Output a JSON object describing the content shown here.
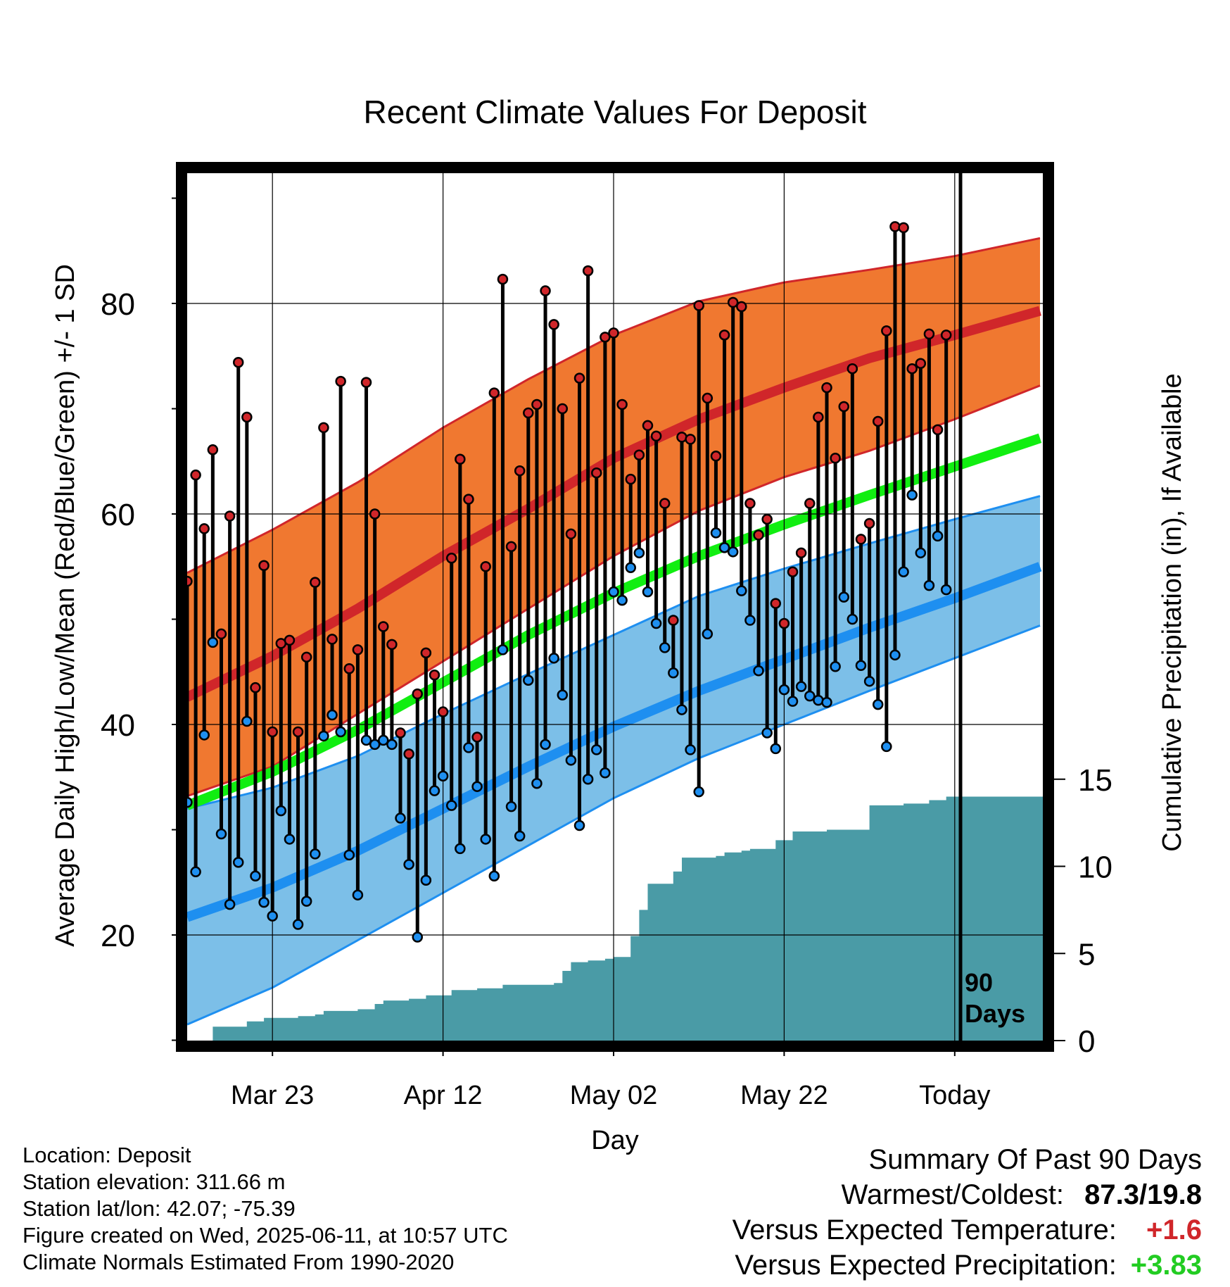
{
  "chart_data": {
    "type": "line",
    "title": "Recent Climate Values For Deposit",
    "xlabel": "Day",
    "ylabel": "Average Daily High/Low/Mean (Red/Blue/Green) +/- 1 SD",
    "y2label": "Cumulative Precipitation (in), If Available",
    "x_ticks": [
      {
        "day": 10,
        "label": "Mar 23"
      },
      {
        "day": 30,
        "label": "Apr 12"
      },
      {
        "day": 50,
        "label": "May 02"
      },
      {
        "day": 70,
        "label": "May 22"
      },
      {
        "day": 90,
        "label": "Today"
      }
    ],
    "y_ticks": [
      20,
      40,
      60,
      80
    ],
    "y2_ticks": [
      0,
      5,
      10,
      15
    ],
    "today_label": [
      "90",
      "Days"
    ],
    "series": [
      {
        "name": "Normal High",
        "color": "#d0262a",
        "points": [
          [
            0,
            42.6
          ],
          [
            10,
            46.5
          ],
          [
            20,
            51.0
          ],
          [
            30,
            56.0
          ],
          [
            40,
            60.5
          ],
          [
            50,
            65.3
          ],
          [
            60,
            69.0
          ],
          [
            70,
            72.0
          ],
          [
            80,
            74.8
          ],
          [
            90,
            77.0
          ],
          [
            100,
            79.3
          ]
        ]
      },
      {
        "name": "Normal High +1 SD",
        "color": "#d0262a",
        "points": [
          [
            0,
            54.4
          ],
          [
            10,
            58.5
          ],
          [
            20,
            63.0
          ],
          [
            30,
            68.2
          ],
          [
            40,
            72.8
          ],
          [
            50,
            77.0
          ],
          [
            60,
            80.2
          ],
          [
            70,
            82.0
          ],
          [
            80,
            83.2
          ],
          [
            90,
            84.5
          ],
          [
            100,
            86.2
          ]
        ]
      },
      {
        "name": "Normal High -1 SD",
        "color": "#d0262a",
        "points": [
          [
            0,
            33.2
          ],
          [
            10,
            36.0
          ],
          [
            20,
            41.0
          ],
          [
            30,
            46.0
          ],
          [
            40,
            51.0
          ],
          [
            50,
            56.0
          ],
          [
            60,
            60.3
          ],
          [
            70,
            63.5
          ],
          [
            80,
            66.0
          ],
          [
            90,
            69.0
          ],
          [
            100,
            72.2
          ]
        ]
      },
      {
        "name": "Normal Mean",
        "color": "#11ee11",
        "points": [
          [
            0,
            32.3
          ],
          [
            10,
            35.5
          ],
          [
            20,
            39.5
          ],
          [
            30,
            44.0
          ],
          [
            40,
            48.5
          ],
          [
            50,
            52.5
          ],
          [
            60,
            56.0
          ],
          [
            70,
            59.0
          ],
          [
            80,
            61.8
          ],
          [
            90,
            64.5
          ],
          [
            100,
            67.2
          ]
        ]
      },
      {
        "name": "Normal Low",
        "color": "#1e8ff0",
        "points": [
          [
            0,
            21.7
          ],
          [
            10,
            24.5
          ],
          [
            20,
            28.0
          ],
          [
            30,
            32.0
          ],
          [
            40,
            36.0
          ],
          [
            50,
            39.8
          ],
          [
            60,
            43.2
          ],
          [
            70,
            46.2
          ],
          [
            80,
            49.2
          ],
          [
            90,
            52.0
          ],
          [
            100,
            55.0
          ]
        ]
      },
      {
        "name": "Normal Low +1 SD",
        "color": "#1e8ff0",
        "points": [
          [
            0,
            32.0
          ],
          [
            10,
            34.0
          ],
          [
            20,
            37.0
          ],
          [
            30,
            41.0
          ],
          [
            40,
            44.8
          ],
          [
            50,
            48.5
          ],
          [
            60,
            52.2
          ],
          [
            70,
            54.8
          ],
          [
            80,
            57.2
          ],
          [
            90,
            59.5
          ],
          [
            100,
            61.7
          ]
        ]
      },
      {
        "name": "Normal Low -1 SD",
        "color": "#1e8ff0",
        "points": [
          [
            0,
            11.5
          ],
          [
            10,
            15.0
          ],
          [
            20,
            19.5
          ],
          [
            30,
            24.0
          ],
          [
            40,
            28.5
          ],
          [
            50,
            33.0
          ],
          [
            60,
            36.8
          ],
          [
            70,
            40.0
          ],
          [
            80,
            43.2
          ],
          [
            90,
            46.3
          ],
          [
            100,
            49.4
          ]
        ]
      }
    ],
    "daily": {
      "highs": [
        53.6,
        63.7,
        58.6,
        66.1,
        48.6,
        59.8,
        74.4,
        69.2,
        43.5,
        55.1,
        39.3,
        47.7,
        48.0,
        39.3,
        46.4,
        53.5,
        68.2,
        48.1,
        72.6,
        45.3,
        47.1,
        72.5,
        60.0,
        49.3,
        47.6,
        39.2,
        37.2,
        42.9,
        46.8,
        44.7,
        41.2,
        55.8,
        65.2,
        61.4,
        38.8,
        55.0,
        71.5,
        82.3,
        56.9,
        64.1,
        69.6,
        70.4,
        81.2,
        78.0,
        70.0,
        58.1,
        72.9,
        83.1,
        63.9,
        76.8,
        77.2,
        70.4,
        63.3,
        65.6,
        68.4,
        67.4,
        61.0,
        49.9,
        67.3,
        67.1,
        79.8,
        71.0,
        65.5,
        77.0,
        80.1,
        79.7,
        61.0,
        58.0,
        59.5,
        51.5,
        49.6,
        54.5,
        56.3,
        61.0,
        69.2,
        72.0,
        65.3,
        70.2,
        73.8,
        57.6,
        59.1,
        68.8,
        77.4,
        87.3,
        87.2,
        73.8,
        74.3,
        77.1,
        68.0,
        77.0
      ],
      "lows": [
        32.6,
        26.0,
        39.0,
        47.8,
        29.6,
        22.9,
        26.9,
        40.3,
        25.6,
        23.1,
        21.8,
        31.8,
        29.1,
        21.0,
        23.2,
        27.7,
        38.9,
        40.9,
        39.3,
        27.6,
        23.8,
        38.5,
        38.1,
        38.5,
        38.1,
        31.1,
        26.7,
        19.8,
        25.2,
        33.7,
        35.1,
        32.3,
        28.2,
        37.8,
        34.1,
        29.1,
        25.6,
        47.1,
        32.2,
        29.4,
        44.2,
        34.4,
        38.1,
        46.3,
        42.8,
        36.6,
        30.4,
        34.8,
        37.6,
        35.4,
        52.6,
        51.8,
        54.9,
        56.3,
        52.6,
        49.6,
        47.3,
        44.9,
        41.4,
        37.6,
        33.6,
        48.6,
        58.2,
        56.8,
        56.4,
        52.7,
        49.9,
        45.1,
        39.2,
        37.7,
        43.3,
        42.2,
        43.6,
        42.7,
        42.3,
        42.1,
        45.5,
        52.1,
        50.0,
        45.6,
        44.1,
        41.9,
        37.9,
        46.6,
        54.5,
        61.8,
        56.3,
        53.2,
        57.9,
        52.8
      ]
    },
    "precip_cumulative": [
      0,
      0,
      0,
      0.8,
      0.8,
      0.8,
      0.8,
      1.1,
      1.1,
      1.3,
      1.3,
      1.3,
      1.3,
      1.4,
      1.4,
      1.5,
      1.7,
      1.7,
      1.7,
      1.7,
      1.8,
      1.8,
      2.1,
      2.3,
      2.3,
      2.3,
      2.4,
      2.4,
      2.6,
      2.6,
      2.6,
      2.9,
      2.9,
      2.9,
      3.0,
      3.0,
      3.0,
      3.2,
      3.2,
      3.2,
      3.2,
      3.2,
      3.2,
      3.3,
      4.0,
      4.5,
      4.5,
      4.6,
      4.6,
      4.7,
      4.8,
      4.8,
      6.0,
      7.5,
      9.0,
      9.0,
      9.0,
      9.7,
      10.5,
      10.5,
      10.5,
      10.5,
      10.6,
      10.8,
      10.8,
      10.9,
      11.0,
      11.0,
      11.0,
      11.5,
      11.5,
      12.0,
      12.0,
      12.0,
      12.0,
      12.1,
      12.1,
      12.1,
      12.1,
      12.1,
      13.5,
      13.5,
      13.5,
      13.5,
      13.6,
      13.6,
      13.6,
      13.8,
      13.8,
      14.0,
      14.0,
      14.0,
      14.0,
      14.0,
      14.0,
      14.0,
      14.0,
      14.0,
      14.0,
      14.0,
      14.0
    ],
    "colors": {
      "high_band": "#f07830",
      "low_band": "#7cbfe8",
      "precip": "#4a9ba6",
      "high_point": "#d0262a",
      "low_point": "#1e8ff0"
    }
  },
  "meta": {
    "location": "Location: Deposit",
    "elevation": "Station elevation: 311.66 m",
    "latlon": "Station lat/lon: 42.07; -75.39",
    "created": "Figure created on Wed, 2025-06-11, at 10:57 UTC",
    "normals": "Climate Normals Estimated From 1990-2020"
  },
  "summary": {
    "title": "Summary Of Past 90 Days",
    "warmest_label": "Warmest/Coldest:",
    "warmest_value": "87.3/19.8",
    "temp_label": "Versus Expected Temperature:",
    "temp_value": "+1.6",
    "precip_label": "Versus Expected Precipitation:",
    "precip_value": "+3.83"
  }
}
